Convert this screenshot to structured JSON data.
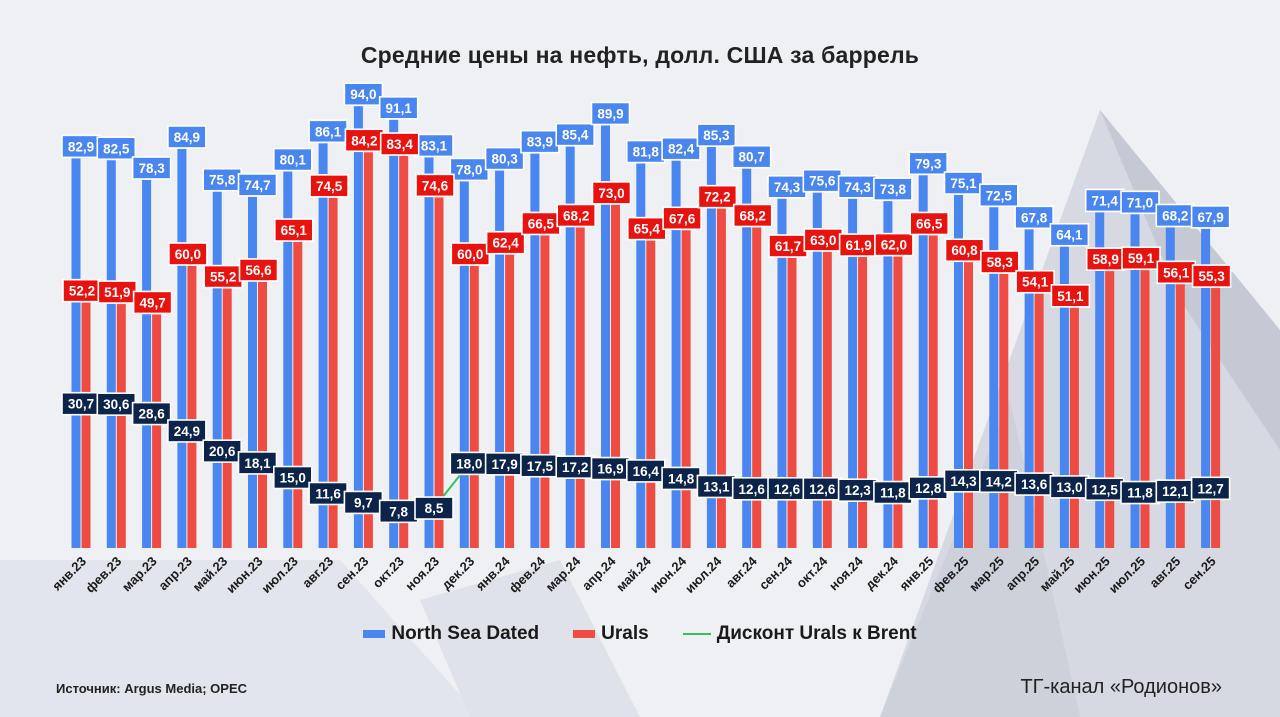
{
  "title": "Средние цены на нефть, долл. США за баррель",
  "legend": {
    "brent": "North Sea Dated",
    "urals": "Urals",
    "discount": "Дисконт Urals к Brent"
  },
  "source": "Источник: Argus Media; OPEC",
  "channel": "ТГ-канал «Родионов»",
  "colors": {
    "brent": "#4a86f0",
    "urals": "#ee4b43",
    "urals_label_bg": "#e8120e",
    "discount_line": "#35c25e",
    "discount_label_bg": "#0c2449"
  },
  "chart_data": {
    "type": "bar",
    "categories": [
      "янв.23",
      "фев.23",
      "мар.23",
      "апр.23",
      "май.23",
      "июн.23",
      "июл.23",
      "авг.23",
      "сен.23",
      "окт.23",
      "ноя.23",
      "дек.23",
      "янв.24",
      "фев.24",
      "мар.24",
      "апр.24",
      "май.24",
      "июн.24",
      "июл.24",
      "авг.24",
      "сен.24",
      "окт.24",
      "ноя.24",
      "дек.24",
      "янв.25",
      "фев.25",
      "мар.25",
      "апр.25",
      "май.25",
      "июн.25",
      "июл.25",
      "авг.25",
      "сен.25"
    ],
    "series": [
      {
        "name": "North Sea Dated",
        "type": "bar",
        "values": [
          82.9,
          82.5,
          78.3,
          84.9,
          75.8,
          74.7,
          80.1,
          86.1,
          94.0,
          91.1,
          83.1,
          78.0,
          80.3,
          83.9,
          85.4,
          89.9,
          81.8,
          82.4,
          85.3,
          80.7,
          74.3,
          75.6,
          74.3,
          73.8,
          79.3,
          75.1,
          72.5,
          67.8,
          64.1,
          71.4,
          71.0,
          68.2,
          67.9
        ]
      },
      {
        "name": "Urals",
        "type": "bar",
        "values": [
          52.2,
          51.9,
          49.7,
          60.0,
          55.2,
          56.6,
          65.1,
          74.5,
          84.2,
          83.4,
          74.6,
          60.0,
          62.4,
          66.5,
          68.2,
          73.0,
          65.4,
          67.6,
          72.2,
          68.2,
          61.7,
          63.0,
          61.9,
          62.0,
          66.5,
          60.8,
          58.3,
          54.1,
          51.1,
          58.9,
          59.1,
          56.1,
          55.3
        ]
      },
      {
        "name": "Дисконт Urals к Brent",
        "type": "line",
        "values": [
          30.7,
          30.6,
          28.6,
          24.9,
          20.6,
          18.1,
          15.0,
          11.6,
          9.7,
          7.8,
          8.5,
          18.0,
          17.9,
          17.5,
          17.2,
          16.9,
          16.4,
          14.8,
          13.1,
          12.6,
          12.6,
          12.6,
          12.3,
          11.8,
          12.8,
          14.3,
          14.2,
          13.6,
          13.0,
          12.5,
          11.8,
          12.1,
          12.7
        ]
      }
    ],
    "ylim": [
      0,
      100
    ],
    "grid": false,
    "legend_position": "bottom"
  }
}
